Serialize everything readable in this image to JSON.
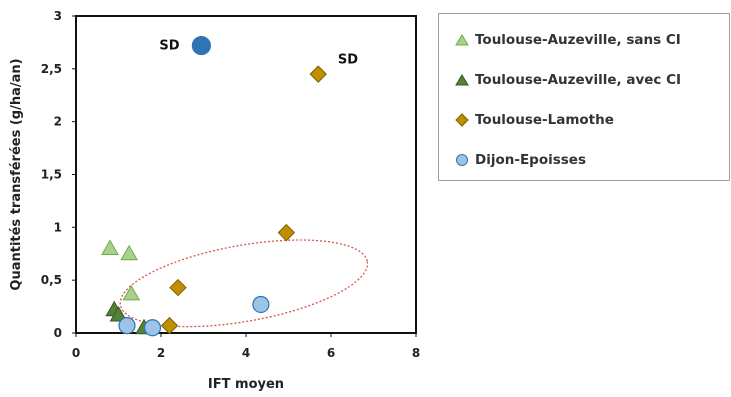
{
  "chart_data": {
    "type": "scatter",
    "xlabel": "IFT moyen",
    "ylabel": "Quantités transférées (g/ha/an)",
    "xlim": [
      0,
      8
    ],
    "ylim": [
      0,
      3
    ],
    "x_ticks": [
      "0",
      "2",
      "4",
      "6",
      "8"
    ],
    "y_ticks": [
      "0",
      "0,5",
      "1",
      "1,5",
      "2",
      "2,5",
      "3"
    ],
    "legend_position": "right",
    "series": [
      {
        "name": "Toulouse-Auzeville, sans CI",
        "marker": "triangle",
        "color": "#a9d18e",
        "stroke": "#70ad47",
        "points": [
          [
            0.8,
            0.8
          ],
          [
            1.25,
            0.75
          ],
          [
            1.3,
            0.37
          ]
        ]
      },
      {
        "name": "Toulouse-Auzeville, avec CI",
        "marker": "triangle",
        "color": "#548235",
        "stroke": "#385723",
        "points": [
          [
            0.9,
            0.22
          ],
          [
            1.0,
            0.17
          ],
          [
            1.6,
            0.05
          ]
        ]
      },
      {
        "name": "Toulouse-Lamothe",
        "marker": "diamond",
        "color": "#bf8f00",
        "stroke": "#7f6000",
        "points": [
          [
            5.7,
            2.45
          ],
          [
            4.95,
            0.95
          ],
          [
            2.4,
            0.43
          ],
          [
            2.2,
            0.07
          ]
        ]
      },
      {
        "name": "Dijon-Epoisses",
        "marker": "circle",
        "color": "#9dc3e6",
        "stroke": "#2e75b6",
        "points": [
          [
            2.95,
            2.72
          ],
          [
            4.35,
            0.27
          ],
          [
            1.2,
            0.07
          ],
          [
            1.8,
            0.05
          ]
        ]
      }
    ],
    "highlight_point": {
      "series": "Dijon-Epoisses",
      "point": [
        2.95,
        2.72
      ],
      "color": "#2e75b6"
    },
    "annotations": [
      {
        "text": "SD",
        "x": 2.2,
        "y": 2.73
      },
      {
        "text": "SD",
        "x": 6.4,
        "y": 2.6
      }
    ],
    "ellipse": {
      "center": [
        3.95,
        0.47
      ],
      "radius_x": 2.95,
      "radius_y": 0.36,
      "rotation_deg": -10,
      "color": "#d9534f"
    }
  }
}
